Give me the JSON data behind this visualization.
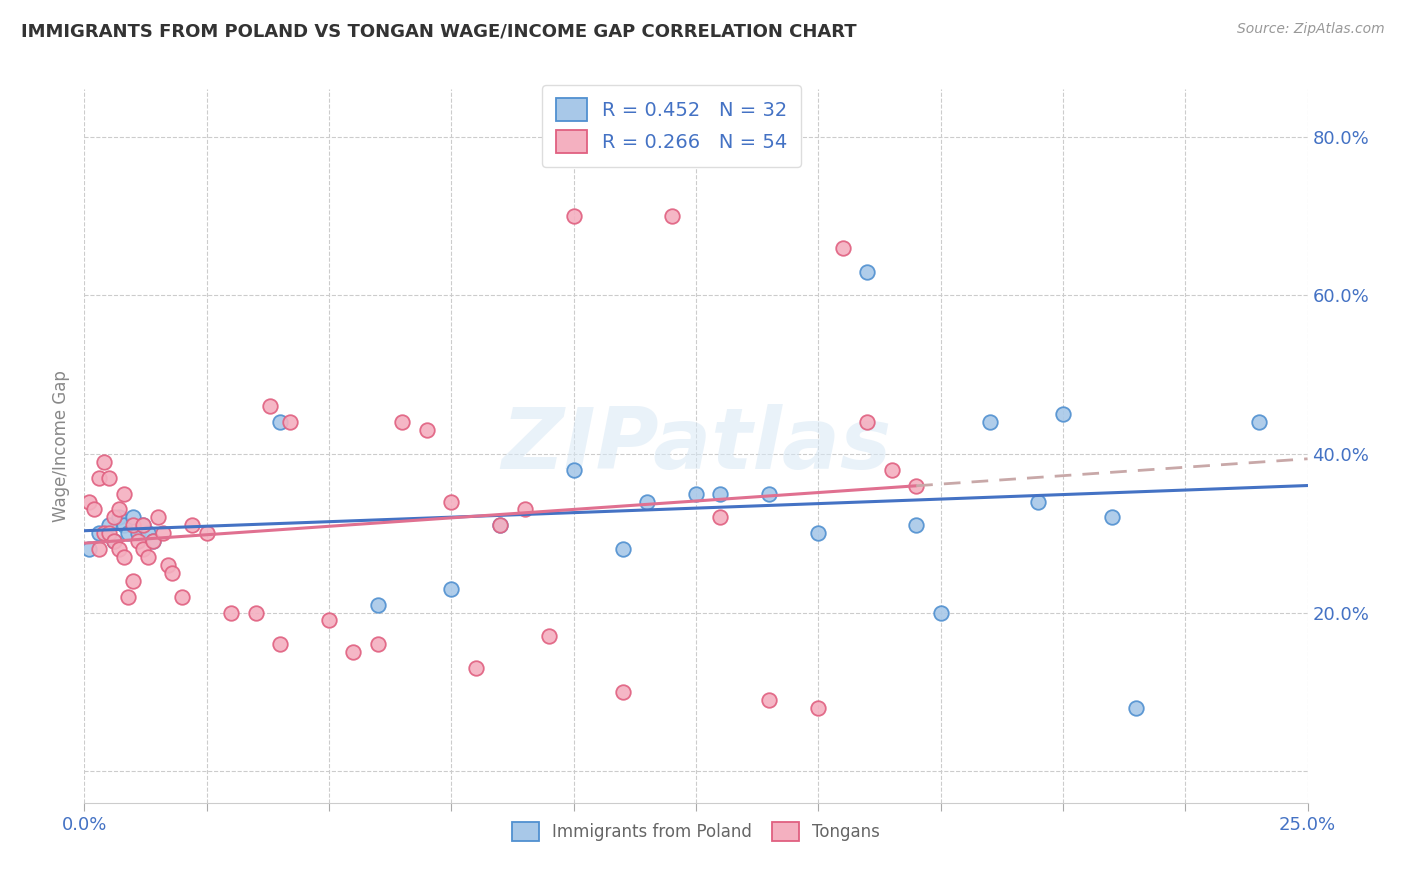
{
  "title": "IMMIGRANTS FROM POLAND VS TONGAN WAGE/INCOME GAP CORRELATION CHART",
  "source": "Source: ZipAtlas.com",
  "ylabel": "Wage/Income Gap",
  "xlim": [
    0.0,
    0.25
  ],
  "ylim": [
    0.0,
    0.85
  ],
  "ytick_vals": [
    0.0,
    0.2,
    0.4,
    0.6,
    0.8
  ],
  "xtick_vals": [
    0.0,
    0.025,
    0.05,
    0.075,
    0.1,
    0.125,
    0.15,
    0.175,
    0.2,
    0.225,
    0.25
  ],
  "R_poland": 0.452,
  "N_poland": 32,
  "R_tongan": 0.266,
  "N_tongan": 54,
  "color_poland_fill": "#A8C8E8",
  "color_tongan_fill": "#F4B0C0",
  "color_poland_edge": "#5090D0",
  "color_tongan_edge": "#E06080",
  "color_poland_line": "#4472C4",
  "color_tongan_line": "#E07090",
  "color_tongan_line_dash": "#C8A8A8",
  "poland_x": [
    0.001,
    0.003,
    0.005,
    0.006,
    0.007,
    0.008,
    0.009,
    0.01,
    0.011,
    0.012,
    0.013,
    0.014,
    0.04,
    0.06,
    0.075,
    0.085,
    0.1,
    0.11,
    0.115,
    0.125,
    0.13,
    0.14,
    0.15,
    0.16,
    0.17,
    0.175,
    0.185,
    0.195,
    0.2,
    0.21,
    0.215,
    0.24
  ],
  "poland_y": [
    0.28,
    0.3,
    0.31,
    0.29,
    0.32,
    0.31,
    0.3,
    0.32,
    0.3,
    0.31,
    0.3,
    0.29,
    0.44,
    0.21,
    0.23,
    0.31,
    0.38,
    0.28,
    0.34,
    0.35,
    0.35,
    0.35,
    0.3,
    0.63,
    0.31,
    0.2,
    0.44,
    0.34,
    0.45,
    0.32,
    0.08,
    0.44
  ],
  "tongan_x": [
    0.001,
    0.002,
    0.003,
    0.003,
    0.004,
    0.004,
    0.005,
    0.005,
    0.006,
    0.006,
    0.007,
    0.007,
    0.008,
    0.008,
    0.009,
    0.01,
    0.01,
    0.011,
    0.012,
    0.012,
    0.013,
    0.014,
    0.015,
    0.016,
    0.017,
    0.018,
    0.02,
    0.022,
    0.025,
    0.03,
    0.035,
    0.038,
    0.04,
    0.042,
    0.05,
    0.055,
    0.06,
    0.065,
    0.07,
    0.075,
    0.08,
    0.085,
    0.09,
    0.095,
    0.1,
    0.11,
    0.12,
    0.13,
    0.14,
    0.15,
    0.155,
    0.16,
    0.165,
    0.17
  ],
  "tongan_y": [
    0.34,
    0.33,
    0.28,
    0.37,
    0.3,
    0.39,
    0.3,
    0.37,
    0.29,
    0.32,
    0.28,
    0.33,
    0.27,
    0.35,
    0.22,
    0.31,
    0.24,
    0.29,
    0.28,
    0.31,
    0.27,
    0.29,
    0.32,
    0.3,
    0.26,
    0.25,
    0.22,
    0.31,
    0.3,
    0.2,
    0.2,
    0.46,
    0.16,
    0.44,
    0.19,
    0.15,
    0.16,
    0.44,
    0.43,
    0.34,
    0.13,
    0.31,
    0.33,
    0.17,
    0.7,
    0.1,
    0.7,
    0.32,
    0.09,
    0.08,
    0.66,
    0.44,
    0.38,
    0.36
  ],
  "watermark": "ZIPatlas"
}
